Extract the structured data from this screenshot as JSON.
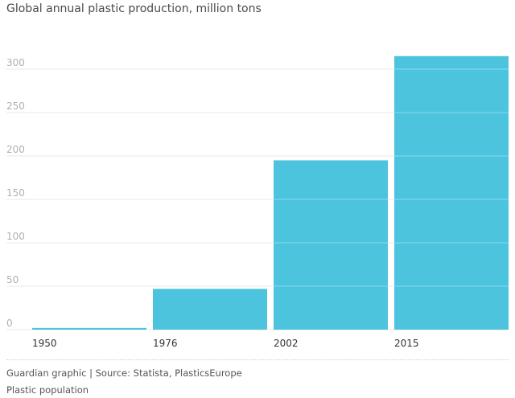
{
  "title": "Global annual plastic production, million tons",
  "source": "Guardian graphic | Source: Statista, PlasticsEurope",
  "caption": "Plastic population",
  "colors": {
    "bar": "#4dc4de",
    "grid": "#e8e8e8",
    "tick_label": "#b0b0b0",
    "x_label": "#333333"
  },
  "chart_data": {
    "type": "bar",
    "title": "Global annual plastic production, million tons",
    "xlabel": "",
    "ylabel": "",
    "categories": [
      "1950",
      "1976",
      "2002",
      "2015"
    ],
    "values": [
      2,
      47,
      195,
      315
    ],
    "ylim": [
      0,
      320
    ],
    "yticks": [
      0,
      50,
      100,
      150,
      200,
      250,
      300
    ],
    "grid": true,
    "legend": "none"
  }
}
